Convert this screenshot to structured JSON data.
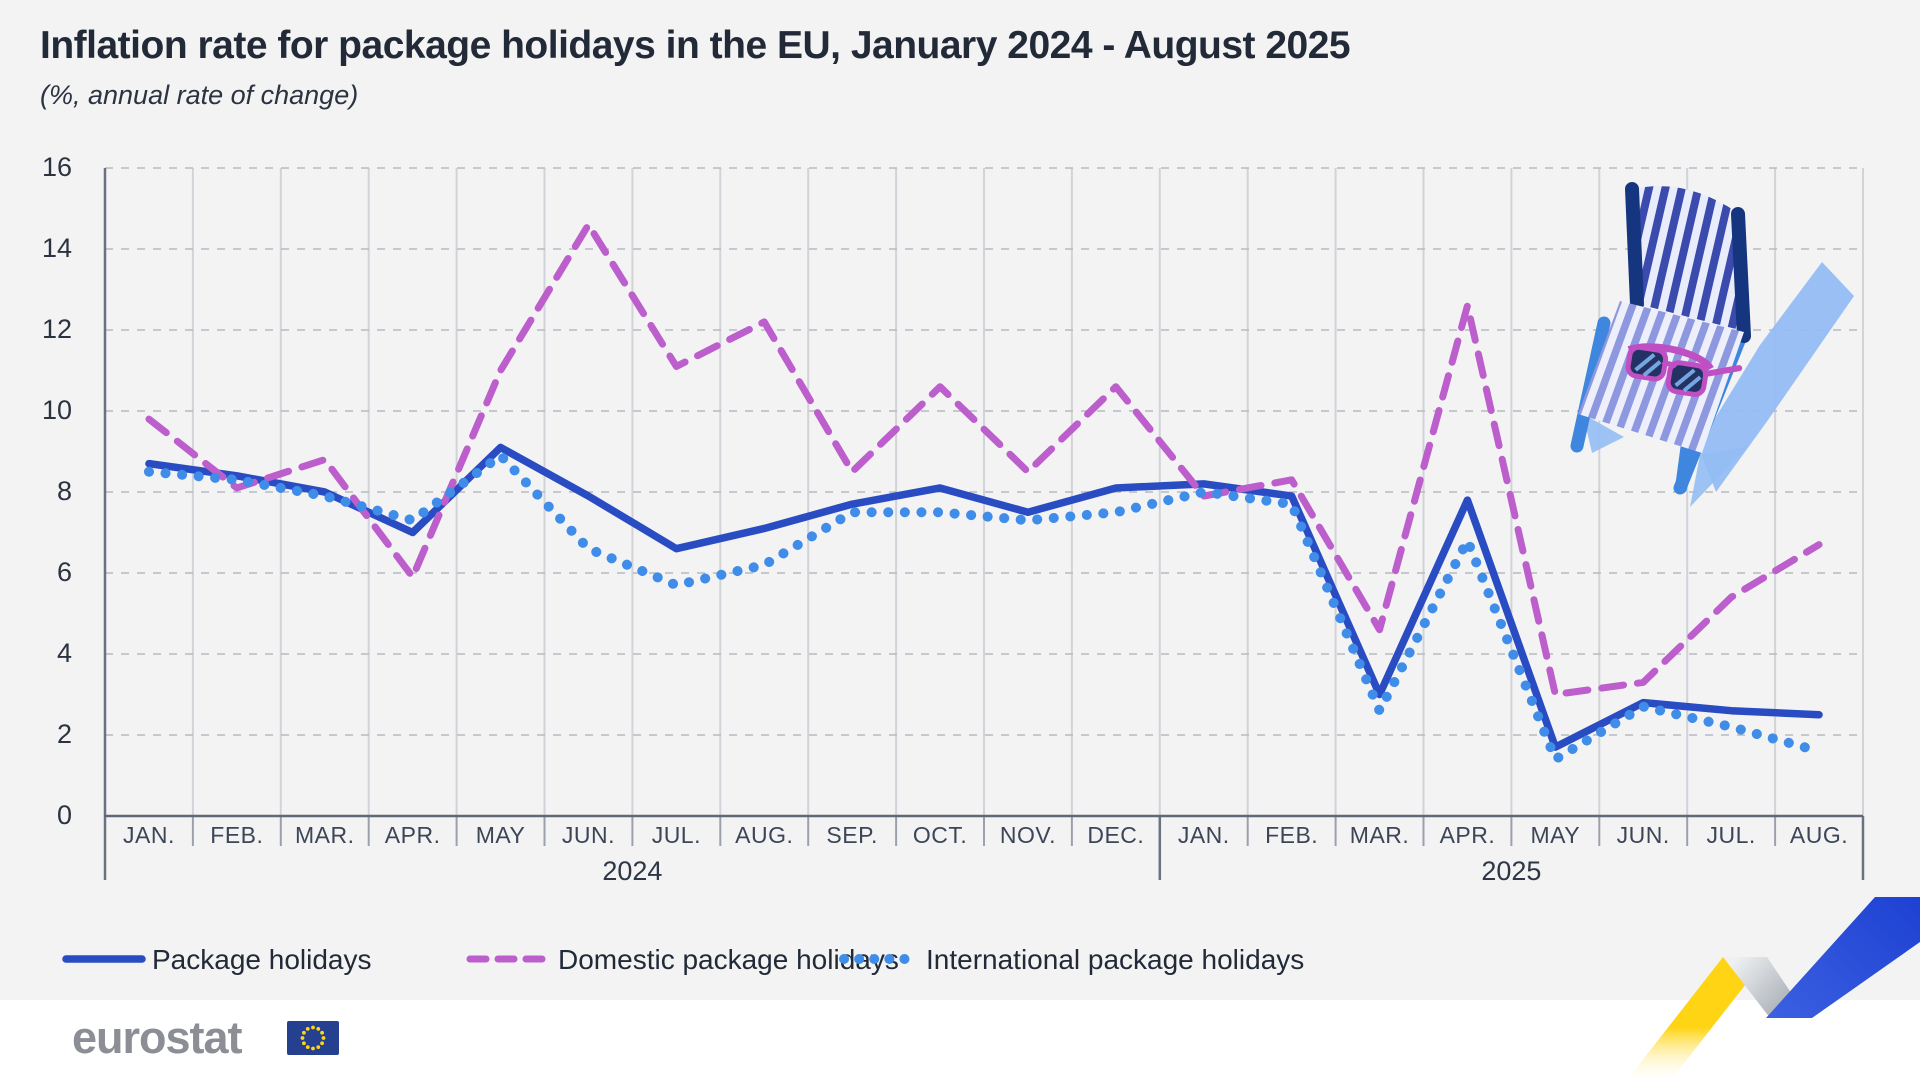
{
  "chart_data": {
    "type": "line",
    "title": "Inflation rate for package holidays in the EU, January 2024 - August 2025",
    "subtitle": "(%, annual rate of change)",
    "x_categories": [
      "JAN.",
      "FEB.",
      "MAR.",
      "APR.",
      "MAY",
      "JUN.",
      "JUL.",
      "AUG.",
      "SEP.",
      "OCT.",
      "NOV.",
      "DEC.",
      "JAN.",
      "FEB.",
      "MAR.",
      "APR.",
      "MAY",
      "JUN.",
      "JUL.",
      "AUG."
    ],
    "year_groups": [
      {
        "label": "2024",
        "months": 12
      },
      {
        "label": "2025",
        "months": 8
      }
    ],
    "ylim": [
      0,
      16
    ],
    "ytick_step": 2,
    "grid": true,
    "legend_position": "bottom-left",
    "series": [
      {
        "name": "Package holidays",
        "style": "solid",
        "color": "#2a4cc2",
        "values": [
          8.7,
          8.4,
          8.0,
          7.0,
          9.1,
          7.9,
          6.6,
          7.1,
          7.7,
          8.1,
          7.5,
          8.1,
          8.2,
          7.9,
          3.0,
          7.8,
          1.7,
          2.8,
          2.6,
          2.5
        ]
      },
      {
        "name": "Domestic package holidays",
        "style": "dashed",
        "color": "#bc5ecb",
        "values": [
          9.8,
          8.1,
          8.8,
          5.9,
          11.0,
          14.6,
          11.1,
          12.2,
          8.5,
          10.6,
          8.5,
          10.6,
          7.9,
          8.3,
          4.6,
          12.6,
          3.0,
          3.3,
          5.4,
          6.7
        ]
      },
      {
        "name": "International package holidays",
        "style": "dotted",
        "color": "#3f8de9",
        "values": [
          8.5,
          8.3,
          7.9,
          7.3,
          8.9,
          6.6,
          5.7,
          6.2,
          7.5,
          7.5,
          7.3,
          7.5,
          8.0,
          7.7,
          2.6,
          6.8,
          1.4,
          2.7,
          2.2,
          1.6
        ]
      }
    ]
  },
  "branding": {
    "logo_text": "eurostat",
    "flag_blue": "#24408f",
    "star_yellow": "#ffd617"
  },
  "decor": {
    "panel_bg": "#f3f3f4",
    "ribbon_yellow": "#ffd414",
    "ribbon_blue": "#1e41d3",
    "ribbon_gray": "#9aa0a8",
    "shadow_blue": "#93bcf4"
  }
}
